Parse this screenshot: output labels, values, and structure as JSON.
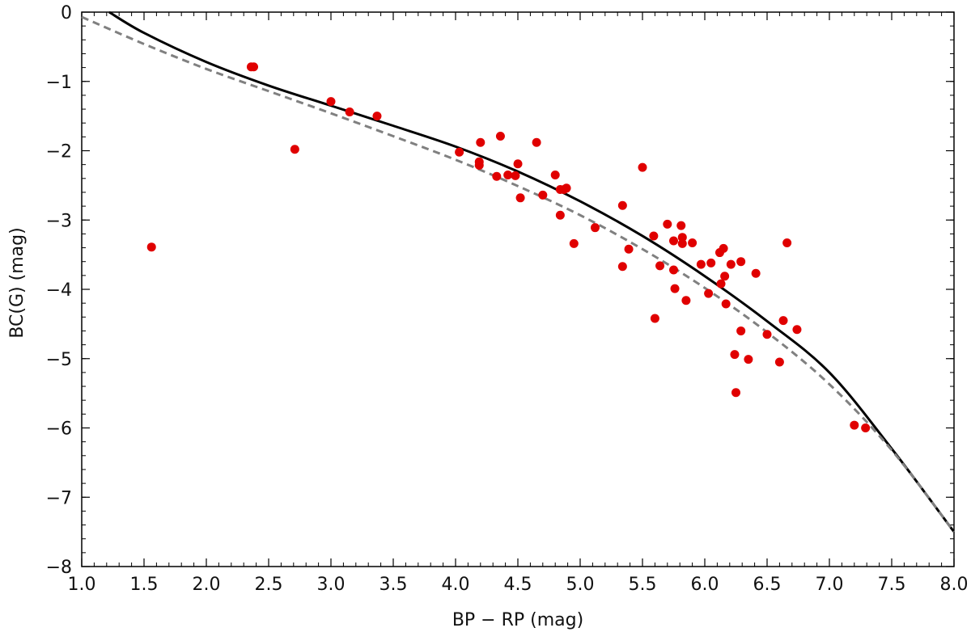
{
  "chart_data": {
    "type": "scatter",
    "xlabel": "BP − RP (mag)",
    "ylabel": "BC(G) (mag)",
    "xlim": [
      1.0,
      8.0
    ],
    "ylim": [
      -8,
      0
    ],
    "x_ticks": [
      "1.0",
      "1.5",
      "2.0",
      "2.5",
      "3.0",
      "3.5",
      "4.0",
      "4.5",
      "5.0",
      "5.5",
      "6.0",
      "6.5",
      "7.0",
      "7.5",
      "8.0"
    ],
    "y_ticks": [
      "0",
      "−1",
      "−2",
      "−3",
      "−4",
      "−5",
      "−6",
      "−7",
      "−8"
    ],
    "x_tick_values": [
      1.0,
      1.5,
      2.0,
      2.5,
      3.0,
      3.5,
      4.0,
      4.5,
      5.0,
      5.5,
      6.0,
      6.5,
      7.0,
      7.5,
      8.0
    ],
    "y_tick_values": [
      0,
      -1,
      -2,
      -3,
      -4,
      -5,
      -6,
      -7,
      -8
    ],
    "grid": false,
    "colors": {
      "points": "#e00000",
      "solid_curve": "#000000",
      "dashed_curve": "#808080"
    },
    "series": [
      {
        "style": "solid-line",
        "x": [
          1.22,
          1.5,
          2.0,
          2.5,
          3.0,
          3.5,
          4.0,
          4.5,
          5.0,
          5.5,
          6.0,
          6.5,
          7.0,
          7.5,
          8.0
        ],
        "y": [
          0.0,
          -0.3,
          -0.72,
          -1.06,
          -1.35,
          -1.64,
          -1.94,
          -2.3,
          -2.73,
          -3.23,
          -3.81,
          -4.46,
          -5.2,
          -6.3,
          -7.5
        ]
      },
      {
        "style": "dashed-line",
        "x": [
          1.0,
          1.5,
          2.0,
          2.5,
          3.0,
          3.5,
          4.0,
          4.5,
          5.0,
          5.5,
          6.0,
          6.5,
          7.0,
          7.5,
          8.0
        ],
        "y": [
          -0.07,
          -0.46,
          -0.82,
          -1.14,
          -1.46,
          -1.79,
          -2.13,
          -2.51,
          -2.93,
          -3.42,
          -3.98,
          -4.62,
          -5.37,
          -6.32,
          -7.5
        ]
      },
      {
        "style": "points",
        "x": [
          1.56,
          2.36,
          2.38,
          2.71,
          3.0,
          3.15,
          3.37,
          4.03,
          4.19,
          4.19,
          4.2,
          4.33,
          4.36,
          4.42,
          4.48,
          4.5,
          4.52,
          4.65,
          4.7,
          4.8,
          4.84,
          4.84,
          4.87,
          4.89,
          4.95,
          5.12,
          5.34,
          5.34,
          5.39,
          5.5,
          5.59,
          5.6,
          5.64,
          5.7,
          5.75,
          5.75,
          5.76,
          5.81,
          5.82,
          5.82,
          5.85,
          5.9,
          5.97,
          6.03,
          6.05,
          6.12,
          6.13,
          6.15,
          6.16,
          6.17,
          6.21,
          6.24,
          6.25,
          6.29,
          6.29,
          6.35,
          6.41,
          6.5,
          6.6,
          6.63,
          6.66,
          6.74,
          7.2,
          7.29
        ],
        "y": [
          -3.39,
          -0.79,
          -0.79,
          -1.98,
          -1.29,
          -1.44,
          -1.5,
          -2.02,
          -2.16,
          -2.21,
          -1.88,
          -2.37,
          -1.79,
          -2.35,
          -2.36,
          -2.19,
          -2.68,
          -1.88,
          -2.64,
          -2.35,
          -2.56,
          -2.93,
          -2.56,
          -2.54,
          -3.34,
          -3.11,
          -2.79,
          -3.67,
          -3.42,
          -2.24,
          -3.23,
          -4.42,
          -3.66,
          -3.06,
          -3.3,
          -3.72,
          -3.99,
          -3.08,
          -3.25,
          -3.34,
          -4.16,
          -3.33,
          -3.64,
          -4.06,
          -3.62,
          -3.47,
          -3.92,
          -3.41,
          -3.81,
          -4.21,
          -3.64,
          -4.94,
          -5.49,
          -4.6,
          -3.6,
          -5.01,
          -3.77,
          -4.65,
          -5.05,
          -4.45,
          -3.33,
          -4.58,
          -5.96,
          -6.0
        ]
      }
    ]
  }
}
